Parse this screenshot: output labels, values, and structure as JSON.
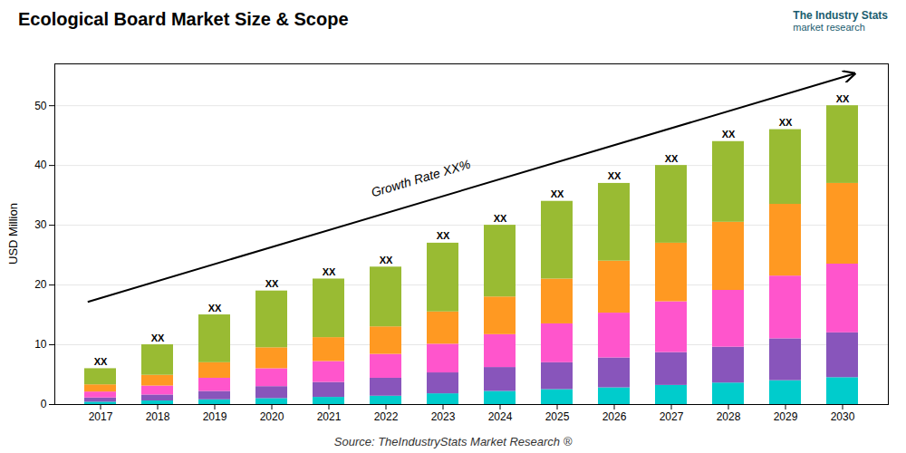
{
  "chart_data": {
    "type": "bar",
    "stacked": true,
    "title": "Ecological Board Market Size & Scope",
    "ylabel": "USD Million",
    "categories": [
      "2017",
      "2018",
      "2019",
      "2020",
      "2021",
      "2022",
      "2023",
      "2024",
      "2025",
      "2026",
      "2027",
      "2028",
      "2029",
      "2030"
    ],
    "series": [
      {
        "color": "#00CCCC",
        "values": [
          0.4,
          0.6,
          0.8,
          1.0,
          1.2,
          1.4,
          1.8,
          2.2,
          2.5,
          2.8,
          3.2,
          3.6,
          4.0,
          4.5
        ]
      },
      {
        "color": "#8855BB",
        "values": [
          0.7,
          1.0,
          1.4,
          2.0,
          2.5,
          3.0,
          3.5,
          4.0,
          4.5,
          5.0,
          5.5,
          6.0,
          7.0,
          7.5
        ]
      },
      {
        "color": "#FF55CC",
        "values": [
          1.0,
          1.5,
          2.2,
          3.0,
          3.5,
          4.0,
          4.8,
          5.5,
          6.5,
          7.5,
          8.5,
          9.5,
          10.5,
          11.5
        ]
      },
      {
        "color": "#FF9922",
        "values": [
          1.2,
          1.8,
          2.6,
          3.5,
          4.0,
          4.6,
          5.4,
          6.3,
          7.5,
          8.7,
          9.8,
          11.4,
          12.0,
          13.5
        ]
      },
      {
        "color": "#99BB33",
        "values": [
          2.7,
          5.1,
          8.0,
          9.5,
          9.8,
          10.0,
          11.5,
          12.0,
          13.0,
          13.0,
          13.0,
          13.5,
          12.5,
          13.0
        ]
      }
    ],
    "bar_labels": [
      "XX",
      "XX",
      "XX",
      "XX",
      "XX",
      "XX",
      "XX",
      "XX",
      "XX",
      "XX",
      "XX",
      "XX",
      "XX",
      "XX"
    ],
    "annotations": [
      "Growth Rate XX%",
      "Source: TheIndustryStats Market Research ®",
      "The Industry Stats",
      "market research"
    ],
    "ylim": [
      0,
      57
    ],
    "yticks": [
      0,
      10,
      20,
      30,
      40,
      50
    ],
    "grid": true
  }
}
